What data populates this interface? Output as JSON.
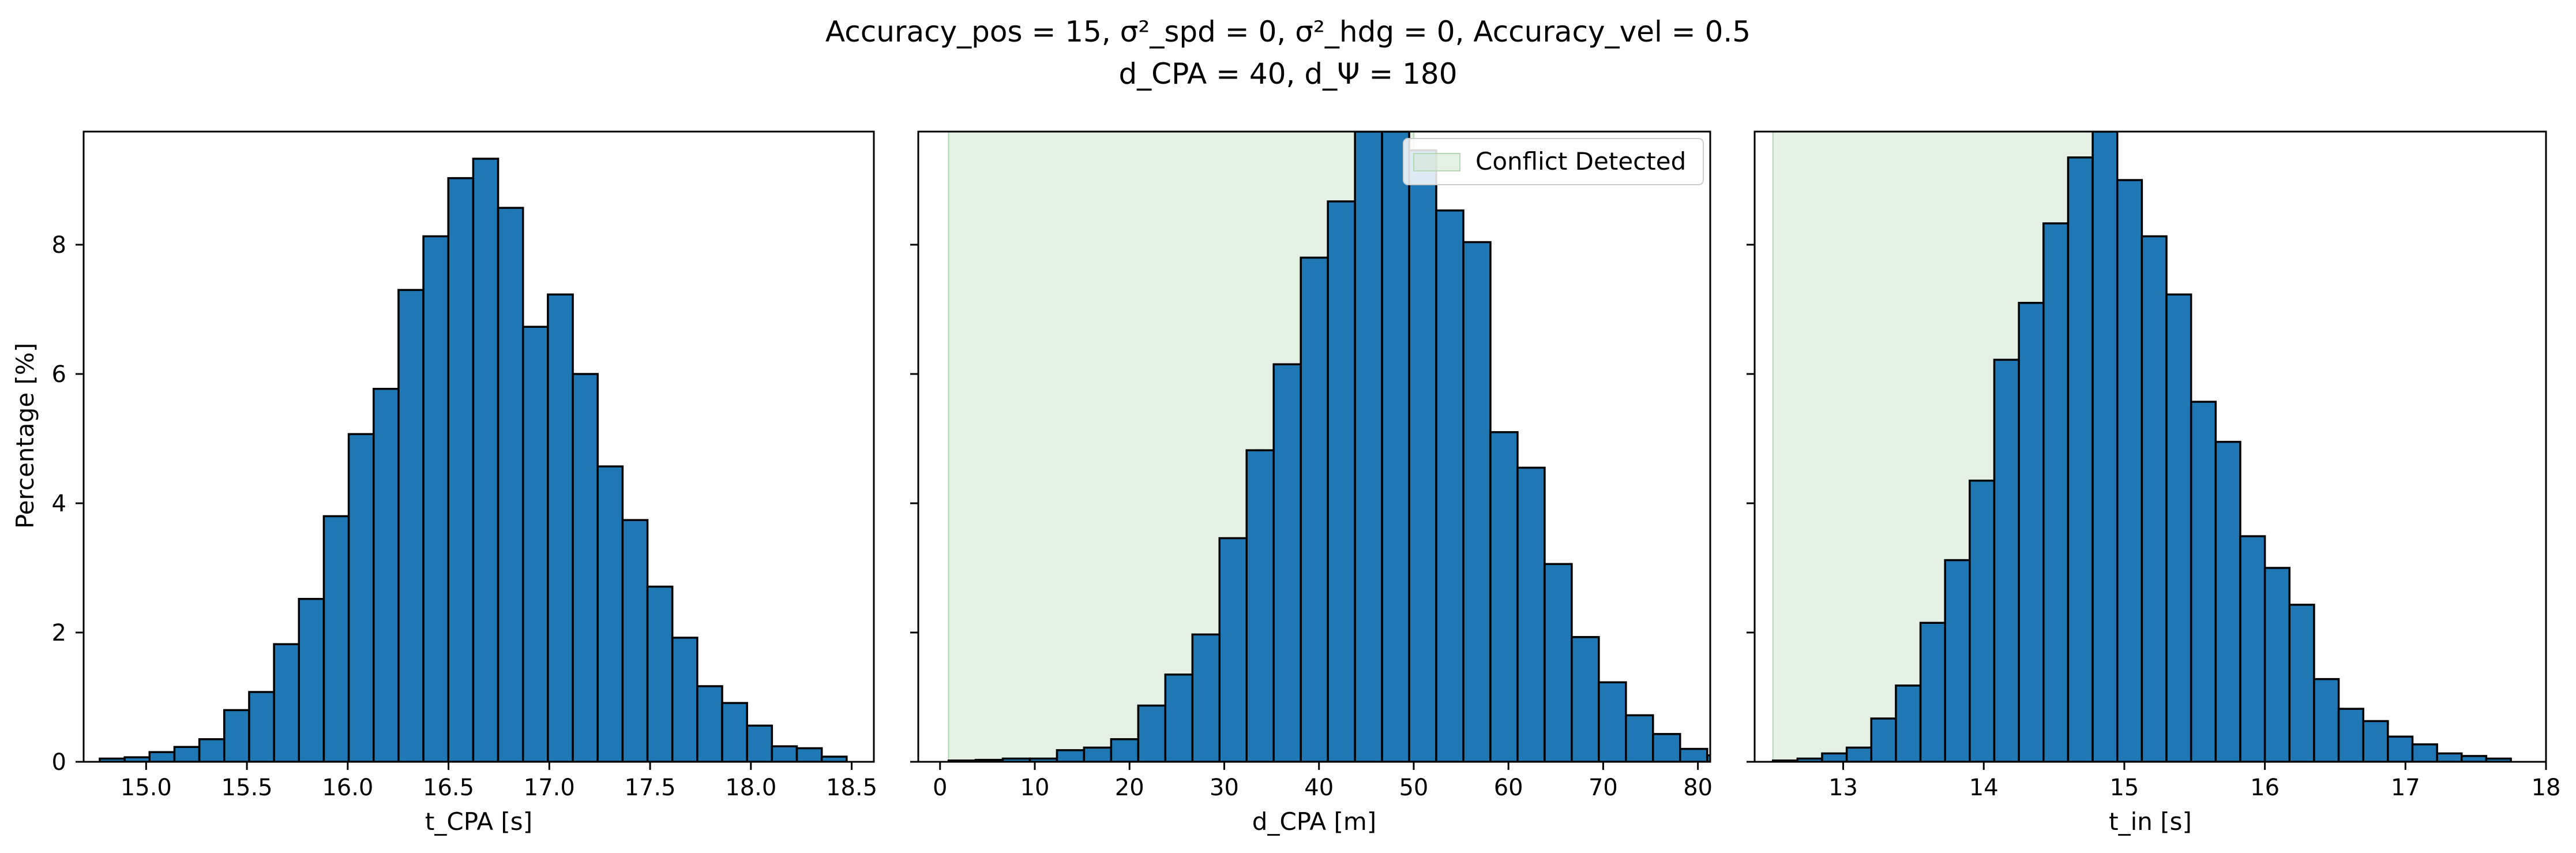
{
  "figure": {
    "title_line1": "Accuracy_pos = 15, σ²_spd = 0, σ²_hdg = 0, Accuracy_vel = 0.5",
    "title_line2": "d_CPA = 40, d_Ψ = 180"
  },
  "colors": {
    "bar": "#1f77b4",
    "bar_edge": "#000000",
    "shade": "#d4e8d4",
    "shade_edge": "#b5d8b5"
  },
  "chart_data": [
    {
      "type": "bar",
      "subtype": "histogram",
      "title": "",
      "xlabel": "t_CPA [s]",
      "ylabel": "Percentage [%]",
      "xlim": [
        14.69,
        18.61
      ],
      "ylim": [
        0,
        9.75
      ],
      "xticks": [
        15.0,
        15.5,
        16.0,
        16.5,
        17.0,
        17.5,
        18.0,
        18.5
      ],
      "xtick_labels": [
        "15.0",
        "15.5",
        "16.0",
        "16.5",
        "17.0",
        "17.5",
        "18.0",
        "18.5"
      ],
      "yticks": [
        0,
        2,
        4,
        6,
        8
      ],
      "ytick_labels": [
        "0",
        "2",
        "4",
        "6",
        "8"
      ],
      "bin_start": 14.77,
      "bin_width": 0.1235,
      "values": [
        0.05,
        0.07,
        0.15,
        0.23,
        0.35,
        0.8,
        1.08,
        1.82,
        2.52,
        3.8,
        5.07,
        5.77,
        7.3,
        8.13,
        9.03,
        9.33,
        8.57,
        6.73,
        7.23,
        6.0,
        4.57,
        3.74,
        2.71,
        1.92,
        1.17,
        0.91,
        0.56,
        0.24,
        0.21,
        0.08
      ],
      "grid": false
    },
    {
      "type": "bar",
      "subtype": "histogram",
      "title": "",
      "xlabel": "d_CPA [m]",
      "ylabel": "",
      "xlim": [
        -2.3,
        81.3
      ],
      "ylim": [
        0,
        9.75
      ],
      "xticks": [
        0,
        10,
        20,
        30,
        40,
        50,
        60,
        70,
        80
      ],
      "xtick_labels": [
        "0",
        "10",
        "20",
        "30",
        "40",
        "50",
        "60",
        "70",
        "80"
      ],
      "yticks": [
        0,
        2,
        4,
        6,
        8
      ],
      "ytick_labels": [
        "",
        "",
        "",
        "",
        ""
      ],
      "bin_start": 0.9,
      "bin_width": 2.86,
      "values": [
        0.02,
        0.03,
        0.05,
        0.05,
        0.18,
        0.22,
        0.35,
        0.87,
        1.35,
        1.97,
        3.46,
        4.82,
        6.15,
        7.8,
        8.67,
        9.75,
        10.0,
        9.46,
        8.53,
        8.04,
        5.1,
        4.55,
        3.06,
        1.93,
        1.23,
        0.72,
        0.43,
        0.2,
        0.1,
        0.04,
        0.02
      ],
      "shaded_region": {
        "x0": 0.9,
        "x1": 50.0,
        "label": "Conflict Detected"
      },
      "legend": {
        "placement": "top-right",
        "entries": [
          "Conflict Detected"
        ]
      },
      "grid": false
    },
    {
      "type": "bar",
      "subtype": "histogram",
      "title": "",
      "xlabel": "t_in [s]",
      "ylabel": "",
      "xlim": [
        12.37,
        18.0
      ],
      "ylim": [
        0,
        9.75
      ],
      "xticks": [
        13,
        14,
        15,
        16,
        17,
        18
      ],
      "xtick_labels": [
        "13",
        "14",
        "15",
        "16",
        "17",
        "18"
      ],
      "yticks": [
        0,
        2,
        4,
        6,
        8
      ],
      "ytick_labels": [
        "",
        "",
        "",
        "",
        ""
      ],
      "bin_start": 12.5,
      "bin_width": 0.175,
      "values": [
        0.02,
        0.05,
        0.13,
        0.22,
        0.67,
        1.18,
        2.15,
        3.12,
        4.35,
        6.22,
        7.1,
        8.33,
        9.35,
        10.0,
        9.0,
        8.13,
        7.23,
        5.57,
        4.95,
        3.49,
        3.0,
        2.43,
        1.28,
        0.82,
        0.63,
        0.39,
        0.27,
        0.13,
        0.09,
        0.05
      ],
      "shaded_region": {
        "x0": 12.5,
        "x1": 14.95,
        "label": ""
      },
      "grid": false
    }
  ]
}
